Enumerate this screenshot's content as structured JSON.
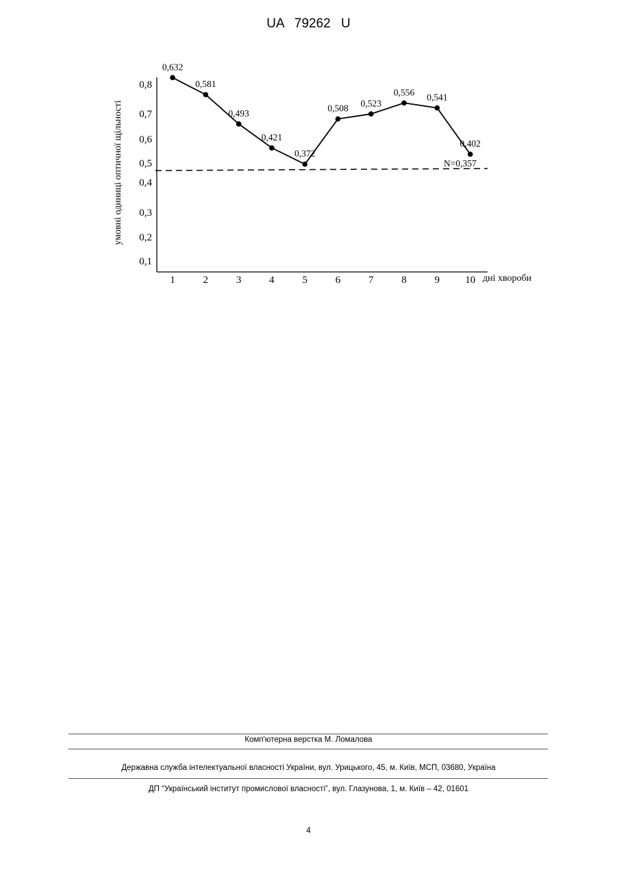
{
  "document": {
    "header": "UA 79262 U",
    "page_number": "4"
  },
  "chart_data": {
    "type": "line",
    "xlabel": "дні хвороби",
    "ylabel": "умовні одиниці оптичної щільності",
    "x": [
      1,
      2,
      3,
      4,
      5,
      6,
      7,
      8,
      9,
      10
    ],
    "x_tick_labels": [
      "1",
      "2",
      "3",
      "4",
      "5",
      "6",
      "7",
      "8",
      "9",
      "10"
    ],
    "y_tick_labels": [
      "0,1",
      "0,2",
      "0,3",
      "0,4",
      "0,5",
      "0,6",
      "0,7",
      "0,8"
    ],
    "series": [
      {
        "values": [
          0.632,
          0.581,
          0.493,
          0.421,
          0.372,
          0.508,
          0.523,
          0.556,
          0.541,
          0.402
        ],
        "labels": [
          "0,632",
          "0,581",
          "0,493",
          "0,421",
          "0,372",
          "0,508",
          "0,523",
          "0,556",
          "0,541",
          "0,402"
        ]
      }
    ],
    "reference_line": {
      "value": 0.357,
      "label": "N=0,357",
      "style": "dashed"
    },
    "ylim": [
      0.05,
      0.8
    ],
    "grid": false
  },
  "footer": {
    "layout": "Комп'ютерна верстка М. Ломалова",
    "address1": "Державна служба інтелектуальної власності України, вул. Урицького, 45, м. Київ, МСП, 03680, Україна",
    "address2": "ДП “Український інститут промислової власності”, вул. Глазунова, 1, м. Київ – 42, 01601"
  }
}
